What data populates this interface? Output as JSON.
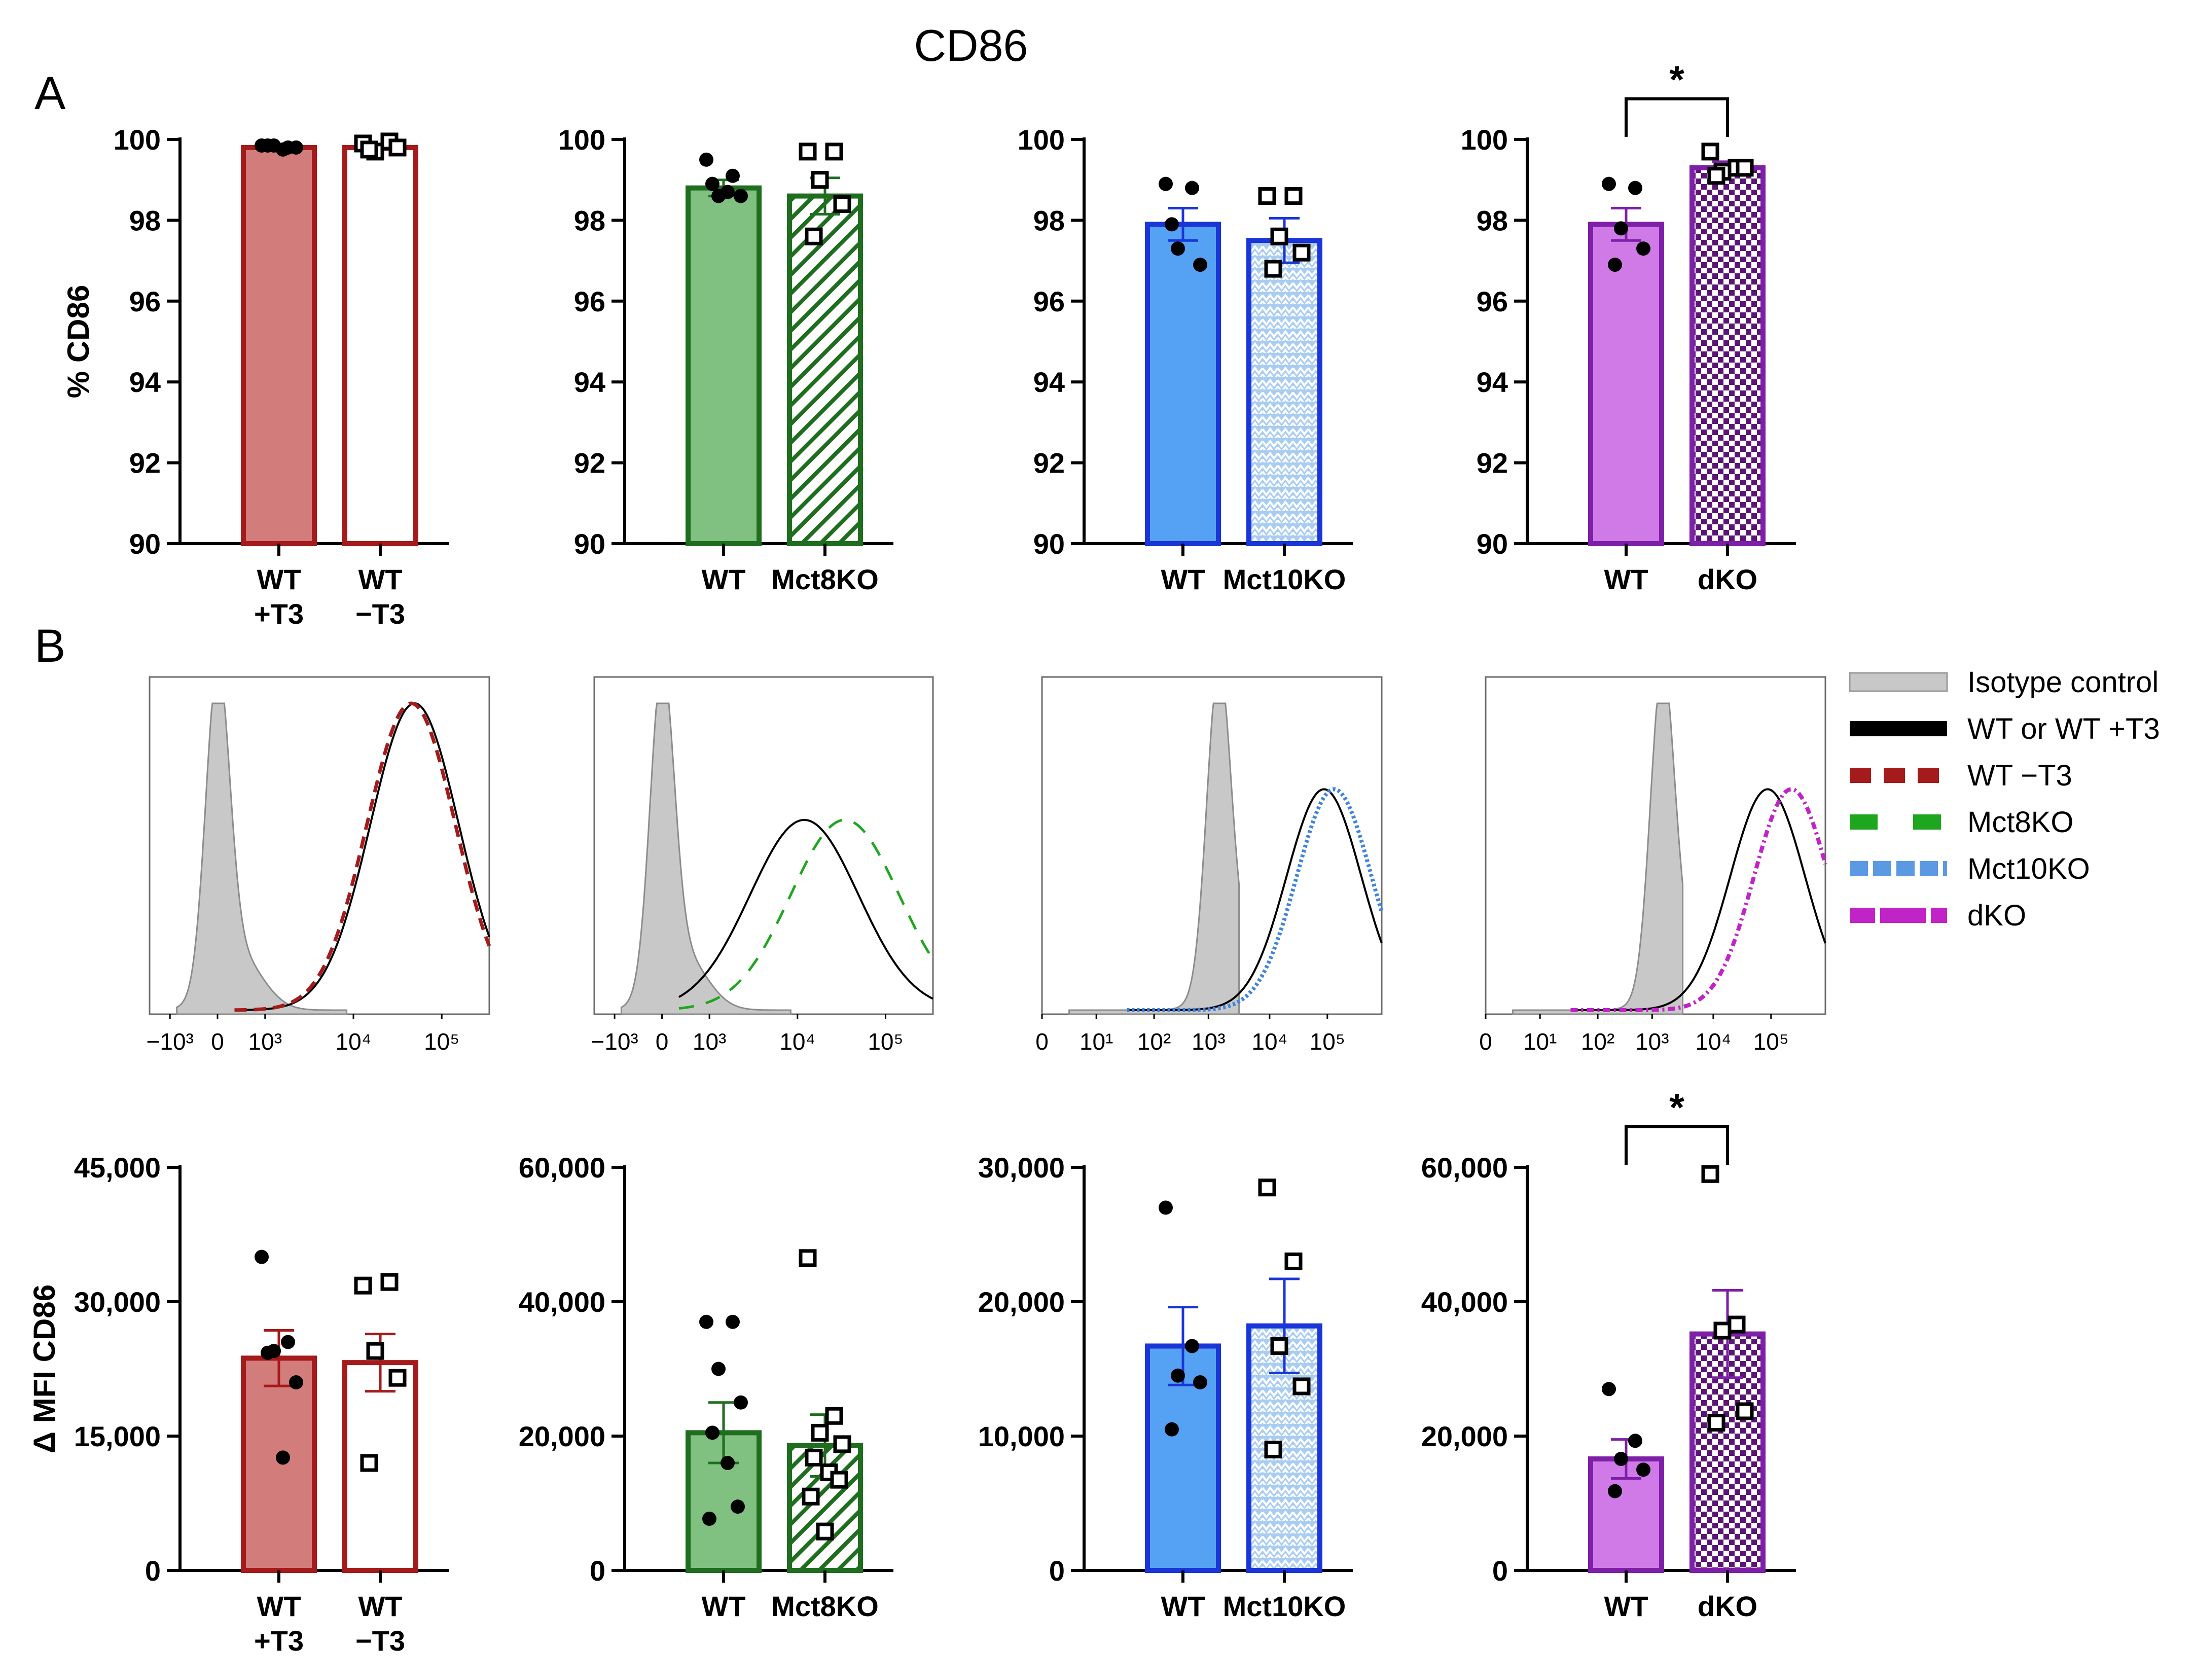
{
  "figure": {
    "title": "CD86",
    "panel_a_label": "A",
    "panel_b_label": "B"
  },
  "colors": {
    "red": "#a51a1a",
    "red_fill": "#d27c7c",
    "green": "#1f6e1f",
    "green_fill": "#80c080",
    "blue": "#1a35d8",
    "blue_fill": "#55a2f5",
    "blue_light": "#a9cdf2",
    "purple": "#7e1fa8",
    "purple_fill": "#d07ae8",
    "isotype": "#c8c8c8"
  },
  "legend": [
    {
      "label": "Isotype control",
      "style": "gray-fill"
    },
    {
      "label": "WT or WT +T3",
      "style": "black-solid"
    },
    {
      "label": "WT −T3",
      "style": "red-dashed"
    },
    {
      "label": "Mct8KO",
      "style": "green-dashed"
    },
    {
      "label": "Mct10KO",
      "style": "blue-dotted"
    },
    {
      "label": "dKO",
      "style": "purple-dashdot"
    }
  ],
  "chart_data": [
    {
      "id": "a1",
      "type": "bar",
      "panel": "A",
      "ylabel": "% CD86",
      "ylim": [
        90,
        100
      ],
      "yticks": [
        90,
        92,
        94,
        96,
        98,
        100
      ],
      "categories": [
        [
          "WT",
          "+T3"
        ],
        [
          "WT",
          "−T3"
        ]
      ],
      "means": [
        99.8,
        99.8
      ],
      "sem": [
        0.05,
        0.05
      ],
      "significance": "",
      "points": [
        [
          99.85,
          99.8,
          99.85,
          99.8,
          99.85,
          99.75
        ],
        [
          99.9,
          99.95,
          99.7,
          99.8,
          99.75
        ]
      ]
    },
    {
      "id": "a2",
      "type": "bar",
      "panel": "A",
      "ylabel": "",
      "ylim": [
        90,
        100
      ],
      "yticks": [
        90,
        92,
        94,
        96,
        98,
        100
      ],
      "categories": [
        [
          "WT"
        ],
        [
          "Mct8KO"
        ]
      ],
      "means": [
        98.8,
        98.6
      ],
      "sem": [
        0.2,
        0.45
      ],
      "significance": "",
      "points": [
        [
          99.5,
          99.1,
          98.6,
          98.6,
          98.9,
          98.7
        ],
        [
          99.7,
          99.7,
          99.0,
          98.4,
          97.6
        ]
      ]
    },
    {
      "id": "a3",
      "type": "bar",
      "panel": "A",
      "ylabel": "",
      "ylim": [
        90,
        100
      ],
      "yticks": [
        90,
        92,
        94,
        96,
        98,
        100
      ],
      "categories": [
        [
          "WT"
        ],
        [
          "Mct10KO"
        ]
      ],
      "means": [
        97.9,
        97.5
      ],
      "sem": [
        0.4,
        0.55
      ],
      "significance": "",
      "points": [
        [
          98.9,
          98.8,
          97.3,
          96.9,
          97.9
        ],
        [
          98.6,
          98.6,
          97.6,
          97.2,
          96.8
        ]
      ]
    },
    {
      "id": "a4",
      "type": "bar",
      "panel": "A",
      "ylabel": "",
      "ylim": [
        90,
        100
      ],
      "yticks": [
        90,
        92,
        94,
        96,
        98,
        100
      ],
      "categories": [
        [
          "WT"
        ],
        [
          "dKO"
        ]
      ],
      "means": [
        97.9,
        99.3
      ],
      "sem": [
        0.4,
        0.15
      ],
      "significance": "*",
      "points": [
        [
          98.9,
          98.8,
          97.8,
          97.3,
          96.9
        ],
        [
          99.7,
          99.3,
          99.2,
          99.3,
          99.1
        ]
      ]
    },
    {
      "id": "c1",
      "type": "bar",
      "panel": "B-bottom",
      "ylabel": "Δ MFI CD86",
      "ylim": [
        0,
        45000
      ],
      "yticks": [
        0,
        15000,
        30000,
        45000
      ],
      "ytick_labels": [
        "0",
        "15,000",
        "30,000",
        "45,000"
      ],
      "categories": [
        [
          "WT",
          "+T3"
        ],
        [
          "WT",
          "−T3"
        ]
      ],
      "means": [
        23700,
        23200
      ],
      "sem": [
        3100,
        3200
      ],
      "significance": "",
      "points": [
        [
          35000,
          25500,
          24500,
          21000,
          24300,
          12600
        ],
        [
          31800,
          32200,
          24500,
          21500,
          12000
        ]
      ]
    },
    {
      "id": "c2",
      "type": "bar",
      "panel": "B-bottom",
      "ylabel": "",
      "ylim": [
        0,
        60000
      ],
      "yticks": [
        0,
        20000,
        40000,
        60000
      ],
      "ytick_labels": [
        "0",
        "20,000",
        "40,000",
        "60,000"
      ],
      "categories": [
        [
          "WT"
        ],
        [
          "Mct8KO"
        ]
      ],
      "means": [
        20500,
        18600
      ],
      "sem": [
        4500,
        4600
      ],
      "significance": "",
      "points": [
        [
          37000,
          37000,
          30000,
          25000,
          20500,
          16000,
          9500,
          7700
        ],
        [
          46500,
          23000,
          20500,
          18800,
          16800,
          14600,
          13500,
          11000,
          5800
        ]
      ]
    },
    {
      "id": "c3",
      "type": "bar",
      "panel": "B-bottom",
      "ylabel": "",
      "ylim": [
        0,
        30000
      ],
      "yticks": [
        0,
        10000,
        20000,
        30000
      ],
      "ytick_labels": [
        "0",
        "10,000",
        "20,000",
        "30,000"
      ],
      "categories": [
        [
          "WT"
        ],
        [
          "Mct10KO"
        ]
      ],
      "means": [
        16700,
        18200
      ],
      "sem": [
        2900,
        3500
      ],
      "significance": "",
      "points": [
        [
          27000,
          16700,
          14500,
          14000,
          10500
        ],
        [
          28500,
          23000,
          16700,
          13700,
          9000
        ]
      ]
    },
    {
      "id": "c4",
      "type": "bar",
      "panel": "B-bottom",
      "ylabel": "",
      "ylim": [
        0,
        60000
      ],
      "yticks": [
        0,
        20000,
        40000,
        60000
      ],
      "ytick_labels": [
        "0",
        "20,000",
        "40,000",
        "60,000"
      ],
      "categories": [
        [
          "WT"
        ],
        [
          "dKO"
        ]
      ],
      "means": [
        16600,
        35200
      ],
      "sem": [
        2900,
        6500
      ],
      "significance": "*",
      "points": [
        [
          27000,
          19300,
          16600,
          15000,
          11800
        ],
        [
          59000,
          36600,
          35700,
          23700,
          22000
        ]
      ]
    },
    {
      "id": "h1",
      "type": "histogram",
      "panel": "B-top",
      "x_tick_labels": [
        "−10³",
        "0",
        "10³",
        "10⁴",
        "10⁵"
      ],
      "isotype_mode": 0.05,
      "series": [
        {
          "name": "WT or WT +T3",
          "peak_x": 0.78
        },
        {
          "name": "WT −T3",
          "peak_x": 0.77
        }
      ]
    },
    {
      "id": "h2",
      "type": "histogram",
      "panel": "B-top",
      "x_tick_labels": [
        "−10³",
        "0",
        "10³",
        "10⁴",
        "10⁵"
      ],
      "isotype_mode": 0.05,
      "series": [
        {
          "name": "WT or WT +T3",
          "peak_x": 0.62
        },
        {
          "name": "Mct8KO",
          "peak_x": 0.74
        }
      ]
    },
    {
      "id": "h3",
      "type": "histogram",
      "panel": "B-top",
      "x_tick_labels": [
        "0",
        "10¹",
        "10²",
        "10³",
        "10⁴",
        "10⁵"
      ],
      "isotype_mode": 0.5,
      "series": [
        {
          "name": "WT or WT +T3",
          "peak_x": 0.83
        },
        {
          "name": "Mct10KO",
          "peak_x": 0.86
        }
      ]
    },
    {
      "id": "h4",
      "type": "histogram",
      "panel": "B-top",
      "x_tick_labels": [
        "0",
        "10¹",
        "10²",
        "10³",
        "10⁴",
        "10⁵"
      ],
      "isotype_mode": 0.5,
      "series": [
        {
          "name": "WT or WT +T3",
          "peak_x": 0.83
        },
        {
          "name": "dKO",
          "peak_x": 0.9
        }
      ]
    }
  ]
}
